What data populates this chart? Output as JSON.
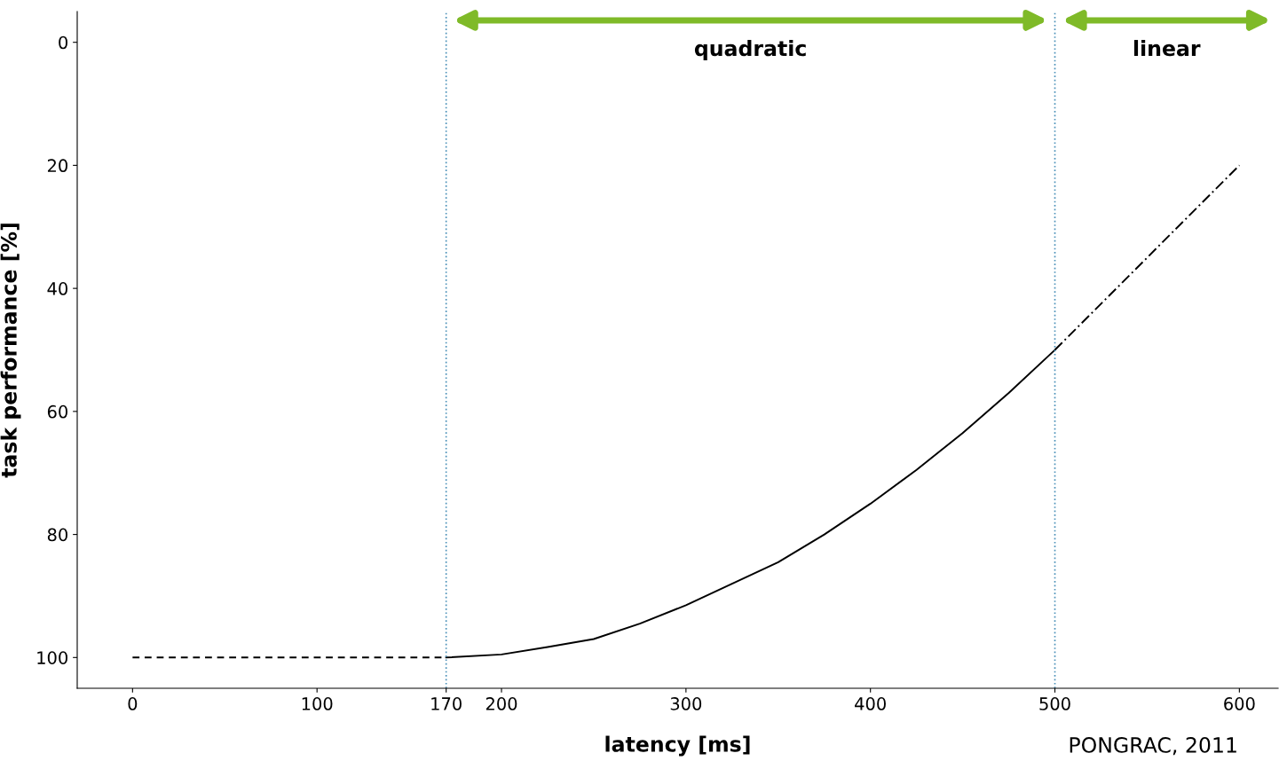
{
  "chart_data": {
    "type": "line",
    "xlabel": "latency [ms]",
    "ylabel": "task performance [%]",
    "series": [
      {
        "color": "#000000",
        "line_style": "dashed",
        "x": [
          0,
          170
        ],
        "values": [
          100,
          100
        ]
      },
      {
        "color": "#000000",
        "line_style": "solid",
        "x": [
          170,
          200,
          225,
          250,
          275,
          300,
          325,
          350,
          375,
          400,
          425,
          450,
          475,
          500
        ],
        "values": [
          100,
          99.5,
          98.3,
          97,
          94.5,
          91.5,
          88,
          84.5,
          80,
          75,
          69.5,
          63.5,
          57,
          50
        ]
      },
      {
        "color": "#000000",
        "line_style": "dashdot",
        "x": [
          500,
          600
        ],
        "values": [
          50,
          20
        ]
      }
    ],
    "xlim": [
      -30,
      621
    ],
    "ylim": [
      105,
      -5
    ],
    "xticks": [
      0,
      100,
      170,
      200,
      300,
      400,
      500,
      600
    ],
    "yticks": [
      0,
      20,
      40,
      60,
      80,
      100
    ],
    "ref_lines": [
      {
        "axis": "x",
        "value": 170,
        "color": "#4a90b8",
        "line_style": "dotted"
      },
      {
        "axis": "x",
        "value": 500,
        "color": "#4a90b8",
        "line_style": "dotted"
      }
    ],
    "annotations": [
      "quadratic",
      "linear",
      "PONGRAC, 2011"
    ],
    "grid": false
  }
}
